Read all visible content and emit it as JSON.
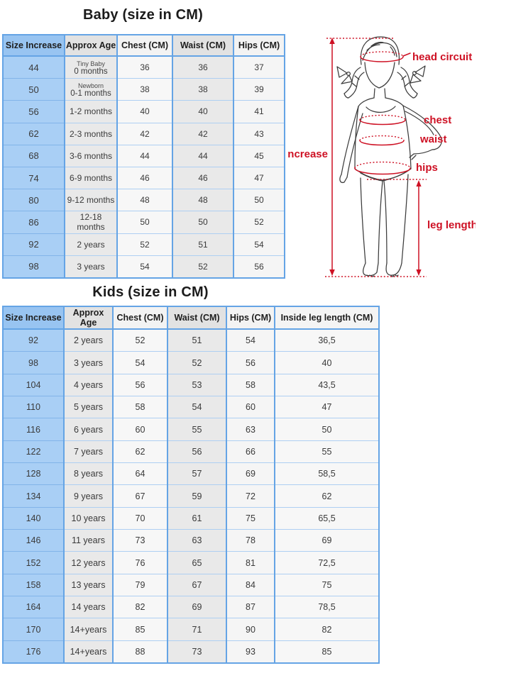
{
  "baby": {
    "title": "Baby (size in CM)",
    "columns": [
      "Size Increase",
      "Approx Age",
      "Chest (CM)",
      "Waist (CM)",
      "Hips (CM)"
    ],
    "rows": [
      [
        "44",
        {
          "note": "Tiny Baby",
          "text": "0 months"
        },
        "36",
        "36",
        "37"
      ],
      [
        "50",
        {
          "note": "Newborn",
          "text": "0-1 months"
        },
        "38",
        "38",
        "39"
      ],
      [
        "56",
        "1-2 months",
        "40",
        "40",
        "41"
      ],
      [
        "62",
        "2-3 months",
        "42",
        "42",
        "43"
      ],
      [
        "68",
        "3-6 months",
        "44",
        "44",
        "45"
      ],
      [
        "74",
        "6-9 months",
        "46",
        "46",
        "47"
      ],
      [
        "80",
        "9-12 months",
        "48",
        "48",
        "50"
      ],
      [
        "86",
        "12-18 months",
        "50",
        "50",
        "52"
      ],
      [
        "92",
        "2 years",
        "52",
        "51",
        "54"
      ],
      [
        "98",
        "3 years",
        "54",
        "52",
        "56"
      ]
    ]
  },
  "kids": {
    "title": "Kids (size in CM)",
    "columns": [
      "Size Increase",
      "Approx Age",
      "Chest (CM)",
      "Waist (CM)",
      "Hips (CM)",
      "Inside leg length (CM)"
    ],
    "rows": [
      [
        "92",
        "2 years",
        "52",
        "51",
        "54",
        "36,5"
      ],
      [
        "98",
        "3 years",
        "54",
        "52",
        "56",
        "40"
      ],
      [
        "104",
        "4 years",
        "56",
        "53",
        "58",
        "43,5"
      ],
      [
        "110",
        "5 years",
        "58",
        "54",
        "60",
        "47"
      ],
      [
        "116",
        "6 years",
        "60",
        "55",
        "63",
        "50"
      ],
      [
        "122",
        "7 years",
        "62",
        "56",
        "66",
        "55"
      ],
      [
        "128",
        "8 years",
        "64",
        "57",
        "69",
        "58,5"
      ],
      [
        "134",
        "9 years",
        "67",
        "59",
        "72",
        "62"
      ],
      [
        "140",
        "10 years",
        "70",
        "61",
        "75",
        "65,5"
      ],
      [
        "146",
        "11 years",
        "73",
        "63",
        "78",
        "69"
      ],
      [
        "152",
        "12 years",
        "76",
        "65",
        "81",
        "72,5"
      ],
      [
        "158",
        "13 years",
        "79",
        "67",
        "84",
        "75"
      ],
      [
        "164",
        "14 years",
        "82",
        "69",
        "87",
        "78,5"
      ],
      [
        "170",
        "14+years",
        "85",
        "71",
        "90",
        "82"
      ],
      [
        "176",
        "14+years",
        "88",
        "73",
        "93",
        "85"
      ]
    ]
  },
  "diagram": {
    "labels": {
      "increase": "increase",
      "head_circuit": "head circuit",
      "chest": "chest",
      "waist": "waist",
      "hips": "hips",
      "leg_length": "leg length"
    },
    "annotation_color": "#ce1124"
  },
  "colors": {
    "header_blue": "#98c4f1",
    "cell_blue": "#a9cff5",
    "header_gray": "#e2e2e2",
    "cell_gray": "#e9e9e9",
    "cell_light": "#f7f7f7",
    "border_strong": "#65a4e5",
    "border_light": "#aecff2",
    "title_text": "#1b1b1b",
    "annotation_red": "#ce1124"
  }
}
